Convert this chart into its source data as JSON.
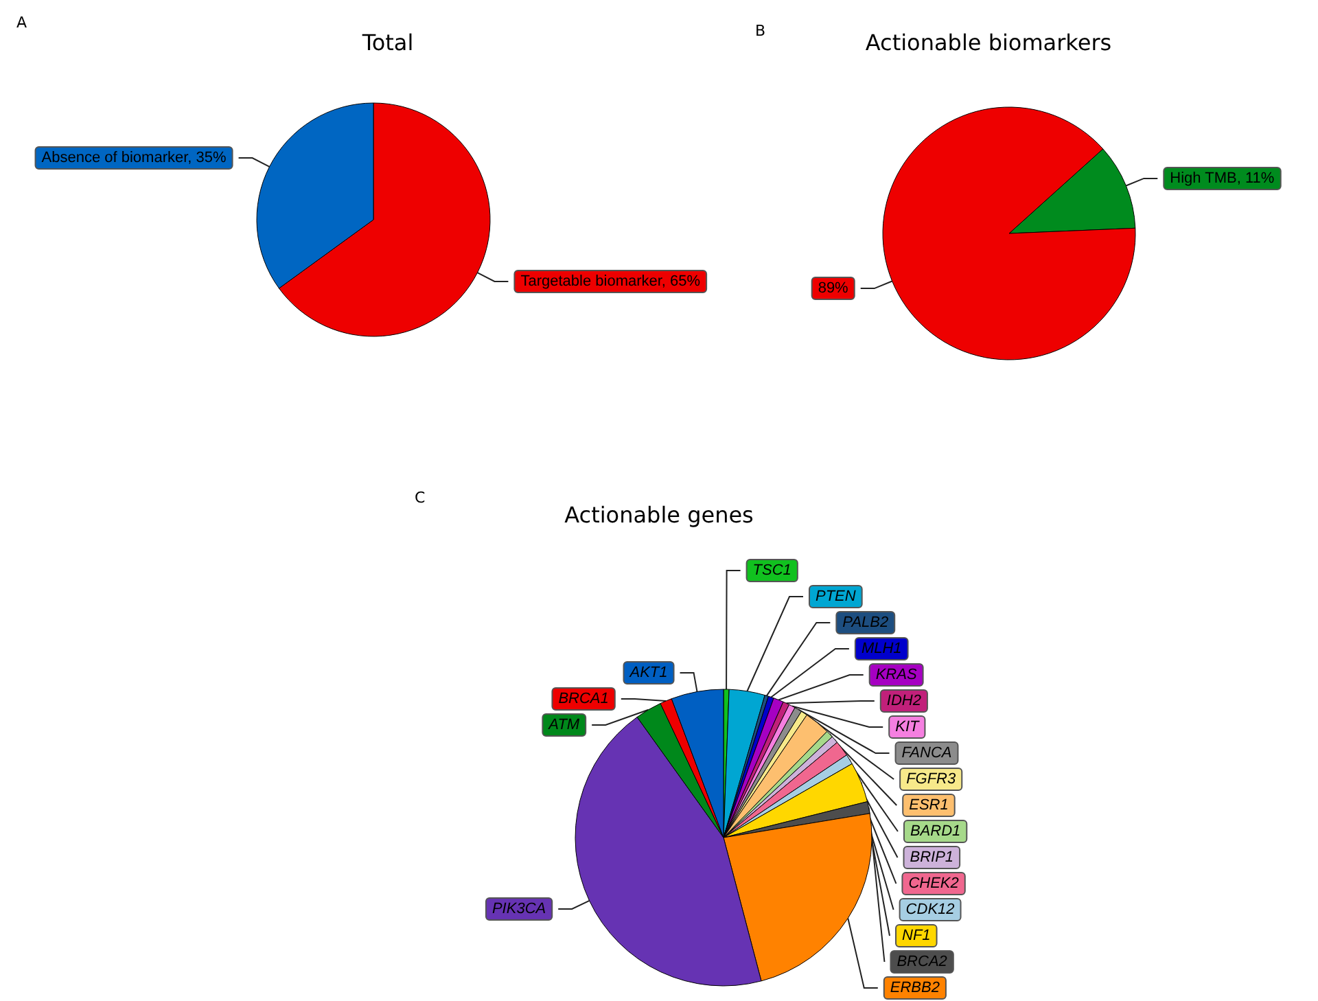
{
  "chart_data": [
    {
      "type": "pie",
      "title": "Total",
      "annotations": [
        "A"
      ],
      "values": [
        65,
        35
      ],
      "colors": [
        "#ee0000",
        "#0066c2"
      ],
      "value_labels": [
        "Targetable biomarker, 65%",
        "Absence of biomarker, 35%"
      ]
    },
    {
      "type": "pie",
      "title": "Actionable biomarkers",
      "annotations": [
        "B"
      ],
      "values": [
        11,
        89
      ],
      "colors": [
        "#008b1e",
        "#ee0000"
      ],
      "value_labels": [
        "High TMB, 11%",
        "89%"
      ]
    },
    {
      "type": "pie",
      "title": "Actionable genes",
      "annotations": [
        "C"
      ],
      "categories": [
        "TSC1",
        "PTEN",
        "PALB2",
        "MLH1",
        "KRAS",
        "IDH2",
        "KIT",
        "FANCA",
        "FGFR3",
        "ESR1",
        "BARD1",
        "BRIP1",
        "CHEK2",
        "CDK12",
        "NF1",
        "BRCA2",
        "ERBB2",
        "PIK3CA",
        "ATM",
        "BRCA1",
        "AKT1"
      ],
      "values": [
        0.6,
        3.9,
        0.4,
        0.6,
        1.1,
        0.7,
        0.7,
        0.8,
        0.7,
        2.8,
        0.8,
        0.8,
        1.7,
        1.1,
        4.4,
        1.3,
        23.5,
        44.2,
        2.9,
        1.3,
        5.7
      ],
      "colors": [
        "#11c11f",
        "#00a6d2",
        "#1d4e80",
        "#0000cc",
        "#a600c2",
        "#c1207a",
        "#f57fe0",
        "#8c8c8c",
        "#f7e98a",
        "#fdbf6f",
        "#a6d98a",
        "#cdb2da",
        "#f0678f",
        "#a6cee3",
        "#ffd700",
        "#4d4d4d",
        "#ff8200",
        "#6633b3",
        "#00881b",
        "#ee0000",
        "#005fc2"
      ]
    }
  ]
}
